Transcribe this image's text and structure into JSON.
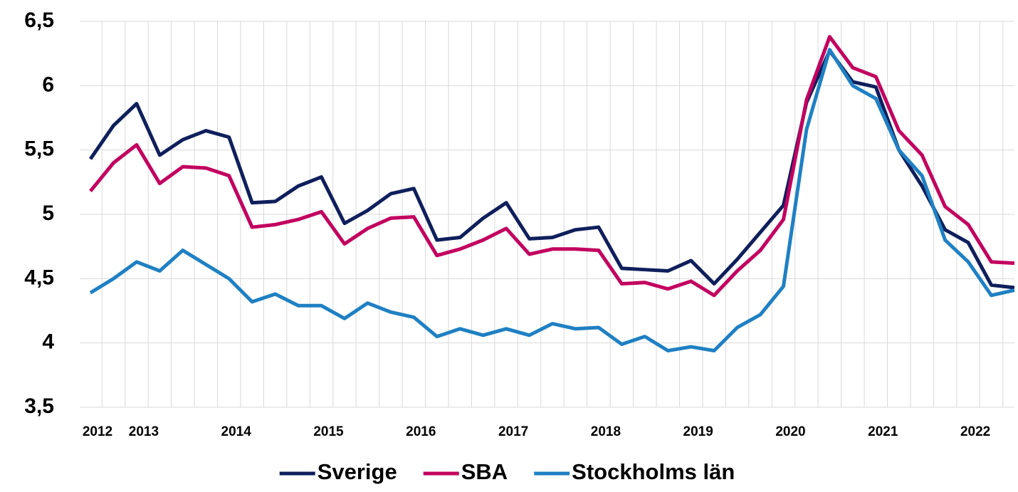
{
  "chart_data": {
    "type": "line",
    "categories": [
      "2012",
      null,
      "2013",
      null,
      null,
      null,
      "2014",
      null,
      null,
      null,
      "2015",
      null,
      null,
      null,
      "2016",
      null,
      null,
      null,
      "2017",
      null,
      null,
      null,
      "2018",
      null,
      null,
      null,
      "2019",
      null,
      null,
      null,
      "2020",
      null,
      null,
      null,
      "2021",
      null,
      null,
      null,
      "2022",
      null,
      null
    ],
    "series": [
      {
        "name": "Sverige",
        "color": "#0f1f5c",
        "values": [
          5.43,
          5.69,
          5.86,
          5.46,
          5.58,
          5.65,
          5.6,
          5.09,
          5.1,
          5.22,
          5.29,
          4.93,
          5.03,
          5.16,
          5.2,
          4.8,
          4.82,
          4.97,
          5.09,
          4.81,
          4.82,
          4.88,
          4.9,
          4.58,
          4.57,
          4.56,
          4.64,
          4.46,
          4.65,
          4.86,
          5.07,
          5.87,
          6.27,
          6.03,
          5.99,
          5.5,
          5.22,
          4.88,
          4.78,
          4.45,
          4.43
        ]
      },
      {
        "name": "SBA",
        "color": "#c2005f",
        "values": [
          5.18,
          5.4,
          5.54,
          5.24,
          5.37,
          5.36,
          5.3,
          4.9,
          4.92,
          4.96,
          5.02,
          4.77,
          4.89,
          4.97,
          4.98,
          4.68,
          4.73,
          4.8,
          4.89,
          4.69,
          4.73,
          4.73,
          4.72,
          4.46,
          4.47,
          4.42,
          4.48,
          4.37,
          4.56,
          4.72,
          4.96,
          5.89,
          6.38,
          6.14,
          6.07,
          5.65,
          5.46,
          5.06,
          4.92,
          4.63,
          4.62
        ]
      },
      {
        "name": "Stockholms län",
        "color": "#1f80c3",
        "values": [
          4.39,
          4.5,
          4.63,
          4.56,
          4.72,
          4.61,
          4.5,
          4.32,
          4.38,
          4.29,
          4.29,
          4.19,
          4.31,
          4.24,
          4.2,
          4.05,
          4.11,
          4.06,
          4.11,
          4.06,
          4.15,
          4.11,
          4.12,
          3.99,
          4.05,
          3.94,
          3.97,
          3.94,
          4.12,
          4.22,
          4.44,
          5.66,
          6.28,
          6.0,
          5.9,
          5.5,
          5.3,
          4.8,
          4.63,
          4.37,
          4.41
        ]
      }
    ],
    "ylim": [
      3.5,
      6.5
    ],
    "yticks": [
      {
        "value": 3.5,
        "label": "3,5"
      },
      4,
      {
        "value": 4.5,
        "label": "4,5"
      },
      5,
      {
        "value": 5.5,
        "label": "5,5"
      },
      6,
      {
        "value": 6.5,
        "label": "6,5"
      }
    ],
    "grid": true,
    "legend": "bottom"
  }
}
